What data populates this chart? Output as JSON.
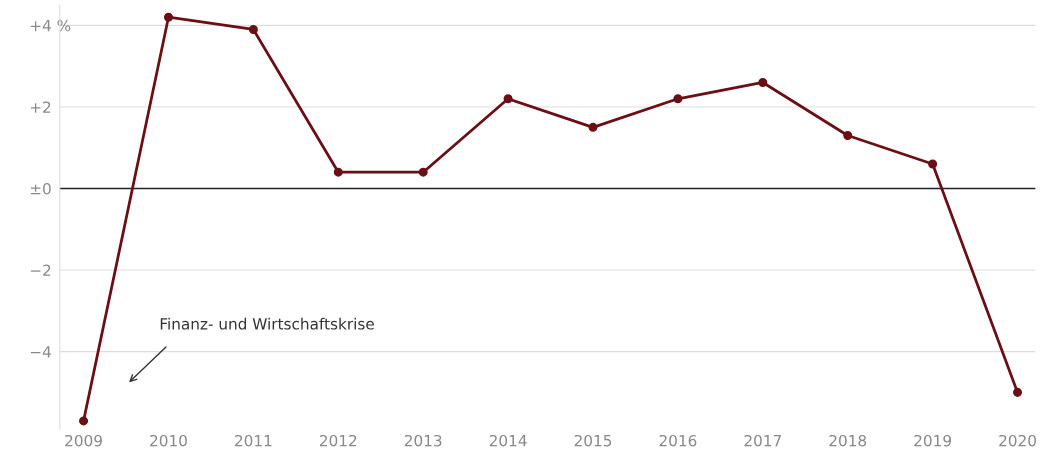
{
  "chart_data": {
    "type": "line",
    "categories": [
      "2009",
      "2010",
      "2011",
      "2012",
      "2013",
      "2014",
      "2015",
      "2016",
      "2017",
      "2018",
      "2019",
      "2020"
    ],
    "series": [
      {
        "color": "#6b0f14",
        "values": [
          -5.7,
          4.2,
          3.9,
          0.4,
          0.4,
          2.2,
          1.5,
          2.2,
          2.6,
          1.3,
          0.6,
          -5.0
        ]
      }
    ],
    "ylim": [
      -5.9,
      4.5
    ],
    "yticks": [
      {
        "value": 4,
        "label": "+4 %"
      },
      {
        "value": 2,
        "label": "+2"
      },
      {
        "value": 0,
        "label": "±0"
      },
      {
        "value": -2,
        "label": "−2"
      },
      {
        "value": -4,
        "label": "−4"
      }
    ],
    "ref_lines": [
      {
        "axis": "y",
        "value": 0,
        "color": "#222222"
      }
    ],
    "annotations": [
      "Finanz- und Wirtschaftskrise"
    ],
    "grid": "y",
    "marker": "circle",
    "line_style": "solid",
    "legend": false
  }
}
